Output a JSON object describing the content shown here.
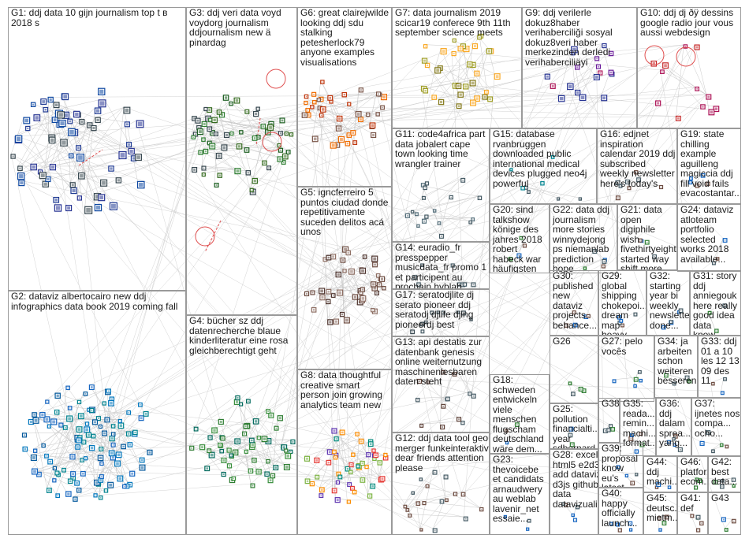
{
  "colors": {
    "border": "#9a9a9a",
    "edge": "#c8c8c8",
    "text": "#1a1a1a",
    "self_loop": "#e05050"
  },
  "groups": [
    {
      "id": "G1",
      "label": "G1: ddj data 10 gijn journalism top t в 2018 s"
    },
    {
      "id": "G2",
      "label": "G2: dataviz albertocairo new ddj infographics data book 2019 coming fall"
    },
    {
      "id": "G3",
      "label": "G3: ddj veri data voyd voydorg journalism ddjournalism new ä pinardag"
    },
    {
      "id": "G4",
      "label": "G4: bücher sz ddj datenrecherche blaue kinderliteratur eine rosa gleichberechtigt geht"
    },
    {
      "id": "G5",
      "label": "G5: igncferreiro 5 puntos ciudad donde repetitivamente suceden delitos acá unos"
    },
    {
      "id": "G6",
      "label": "G6: great clairejwilde looking ddj sdu stalking petesherlock79 anyone examples visualisations"
    },
    {
      "id": "G7",
      "label": "G7: data journalism 2019 scicar19 conferece 9th 11th september science meets"
    },
    {
      "id": "G8",
      "label": "G8: data thoughtful creative smart person join growing analytics team new"
    },
    {
      "id": "G9",
      "label": "G9: ddj verilerle dokuz8haber verihaberciliği sosyal dokuz8veri haber merkezinden derledi verihaberciliäyi"
    },
    {
      "id": "G10",
      "label": "G10: ddj dj ðÿ dessins google radio jour vous aussi webdesign"
    },
    {
      "id": "G11",
      "label": "G11: code4africa part data jobalert cape town looking time wrangler trainer"
    },
    {
      "id": "G12",
      "label": "G12: ddj data tool geo merger funkeinteraktiv dear friends attention please"
    },
    {
      "id": "G13",
      "label": "G13: api destatis zur datenbank genesis online weiternutzung maschinenlesbaren daten steht"
    },
    {
      "id": "G14",
      "label": "G14: euradio_fr presspepper musicdata_fr promo 1 et participent au prochain hyblab"
    },
    {
      "id": "G15",
      "label": "G15: database rvanbruggen downloaded public international medical devices plugged neo4j powerful"
    },
    {
      "id": "G16",
      "label": "G16: edjnet inspiration calendar 2019 ddj subscribed weekly newsletter here's today's"
    },
    {
      "id": "G17",
      "label": "G17: seratodjlite dj serato pioneer ddj seratodj djlife djing pioneerdj best"
    },
    {
      "id": "G18",
      "label": "G18: schweden entwickeln viele menschen flugscham deutschland wäre dem..."
    },
    {
      "id": "G19",
      "label": "G19: state chilling example aguilleng magiccia ddj fill void fails evacostantar..."
    },
    {
      "id": "G20",
      "label": "G20: sind talkshow könige des jahres 2018 robert habeck war häufigsten"
    },
    {
      "id": "G21",
      "label": "G21: data open digiphile wish fivethirtyeight started way shift more journalism"
    },
    {
      "id": "G22",
      "label": "G22: data ddj journalism more stories winnydejong ps niemanlab prediction hope"
    },
    {
      "id": "G23",
      "label": "G23: thevoicebe et candidats arnaudwery au weblab lavenir_net essaie..."
    },
    {
      "id": "G24",
      "label": "G24: dataviz atloteam portfolio selected works 2018 available..."
    },
    {
      "id": "G25",
      "label": "G25: pollution financialti... year sdbernard bad india..."
    },
    {
      "id": "G26",
      "label": "G26"
    },
    {
      "id": "G27",
      "label": "G27: pelo vocês"
    },
    {
      "id": "G28",
      "label": "G28: excel html5 e2d3 add dataviz d3js github data datavizuali..."
    },
    {
      "id": "G29",
      "label": "G29: global shipping chokepoi... dream map heavy project..."
    },
    {
      "id": "G30",
      "label": "G30: published new dataviz projects behance..."
    },
    {
      "id": "G31",
      "label": "G31: story ddj anniegouk here really good idea data know..."
    },
    {
      "id": "G32",
      "label": "G32: starting year bi weekly newsletter done..."
    },
    {
      "id": "G33",
      "label": "G33: ddj 01 a 10 les 12 13 09 des 11"
    },
    {
      "id": "G34",
      "label": "G34: ja arbeiten schon weiteren besseren..."
    },
    {
      "id": "G35",
      "label": "G35: reada... remin... machi... format..."
    },
    {
      "id": "G36",
      "label": "G36: ddj dalam sprea... yang..."
    },
    {
      "id": "G37",
      "label": "G37: ijnetes nos compa... ocho..."
    },
    {
      "id": "G38",
      "label": "G38"
    },
    {
      "id": "G39",
      "label": "G39: proposal know eu's latest..."
    },
    {
      "id": "G40",
      "label": "G40: happy officially launch..."
    },
    {
      "id": "G41",
      "label": "G41: def"
    },
    {
      "id": "G42",
      "label": "G42: best data..."
    },
    {
      "id": "G43",
      "label": "G43"
    },
    {
      "id": "G44",
      "label": "G44: ddj machi..."
    },
    {
      "id": "G45",
      "label": "G45: deutsc... mietm..."
    },
    {
      "id": "G46",
      "label": "G46: platfor... ecom..."
    }
  ]
}
